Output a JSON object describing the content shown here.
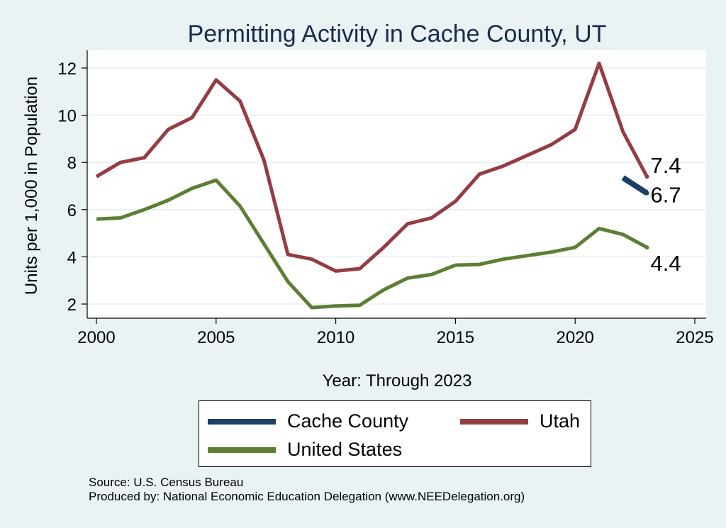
{
  "chart_data": {
    "type": "line",
    "title": "Permitting Activity in Cache County, UT",
    "xlabel": "Year: Through 2023",
    "ylabel": "Units per 1,000 in Population",
    "xlim": [
      2000,
      2025
    ],
    "ylim": [
      1.5,
      12.7
    ],
    "xticks": [
      2000,
      2005,
      2010,
      2015,
      2020,
      2025
    ],
    "yticks": [
      2,
      4,
      6,
      8,
      10,
      12
    ],
    "grid": true,
    "legend_position": "bottom",
    "series": [
      {
        "name": "Cache County",
        "color": "#1d3f66",
        "x": [
          2022,
          2023
        ],
        "values": [
          7.35,
          6.7
        ],
        "end_label": "6.7"
      },
      {
        "name": "Utah",
        "color": "#943d44",
        "x": [
          2000,
          2001,
          2002,
          2003,
          2004,
          2005,
          2006,
          2007,
          2008,
          2009,
          2010,
          2011,
          2012,
          2013,
          2014,
          2015,
          2016,
          2017,
          2018,
          2019,
          2020,
          2021,
          2022,
          2023
        ],
        "values": [
          7.4,
          8.0,
          8.2,
          9.4,
          9.9,
          11.5,
          10.6,
          8.1,
          4.1,
          3.9,
          3.4,
          3.5,
          4.4,
          5.4,
          5.65,
          6.35,
          7.5,
          7.85,
          8.3,
          8.75,
          9.4,
          12.2,
          9.3,
          7.4
        ],
        "end_label": "7.4"
      },
      {
        "name": "United States",
        "color": "#5c7e35",
        "x": [
          2000,
          2001,
          2002,
          2003,
          2004,
          2005,
          2006,
          2007,
          2008,
          2009,
          2010,
          2011,
          2012,
          2013,
          2014,
          2015,
          2016,
          2017,
          2018,
          2019,
          2020,
          2021,
          2022,
          2023
        ],
        "values": [
          5.6,
          5.65,
          6.0,
          6.4,
          6.9,
          7.25,
          6.15,
          4.55,
          2.95,
          1.85,
          1.92,
          1.95,
          2.6,
          3.1,
          3.25,
          3.65,
          3.68,
          3.9,
          4.05,
          4.2,
          4.4,
          5.2,
          4.95,
          4.4
        ],
        "end_label": "4.4"
      }
    ]
  },
  "legend": {
    "items": [
      {
        "label": "Cache County",
        "color": "#1d3f66"
      },
      {
        "label": "Utah",
        "color": "#943d44"
      },
      {
        "label": "United States",
        "color": "#5c7e35"
      }
    ]
  },
  "footer": {
    "source": "Source: U.S. Census Bureau",
    "produced_by": "Produced by: National Economic Education Delegation (www.NEEDelegation.org)"
  }
}
